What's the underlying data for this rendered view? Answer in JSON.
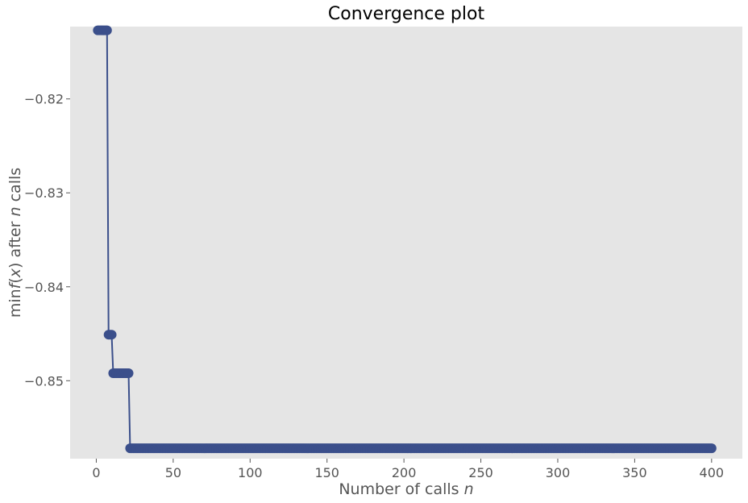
{
  "chart_data": {
    "type": "line",
    "title": "Convergence plot",
    "xlabel": "Number of calls",
    "xlabel_var": "n",
    "ylabel": {
      "prefix": "min",
      "f": "f",
      "mid": "(",
      "x": "x",
      "after": ") after ",
      "n": "n",
      "suffix": " calls"
    },
    "xlim": [
      -17,
      420
    ],
    "ylim": [
      -0.8583,
      -0.8123
    ],
    "xticks": [
      0,
      50,
      100,
      150,
      200,
      250,
      300,
      350,
      400
    ],
    "xtick_labels": [
      "0",
      "50",
      "100",
      "150",
      "200",
      "250",
      "300",
      "350",
      "400"
    ],
    "yticks": [
      -0.82,
      -0.83,
      -0.84,
      -0.85
    ],
    "ytick_labels": [
      "−0.82",
      "−0.83",
      "−0.84",
      "−0.85"
    ],
    "grid": false,
    "legend": "none",
    "colors": {
      "line": "#3b4f8b",
      "marker": "#3b4f8b",
      "plot_background": "#e5e5e5"
    },
    "series": [
      {
        "n_range": [
          1,
          400
        ],
        "steps": [
          {
            "from": 1,
            "to": 7,
            "value": -0.8127
          },
          {
            "from": 8,
            "to": 10,
            "value": -0.8451
          },
          {
            "from": 11,
            "to": 21,
            "value": -0.8492
          },
          {
            "from": 22,
            "to": 400,
            "value": -0.8572
          }
        ]
      }
    ]
  }
}
